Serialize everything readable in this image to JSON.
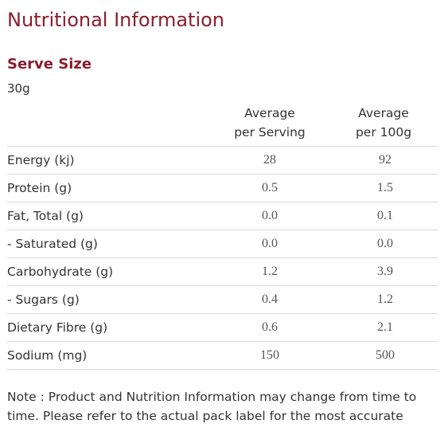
{
  "title": "Nutritional Information",
  "serve": {
    "heading": "Serve Size",
    "value": "30g"
  },
  "table": {
    "headers": {
      "serving_line1": "Average",
      "serving_line2": "per Serving",
      "per100_line1": "Average",
      "per100_line2": "per 100g"
    },
    "rows": [
      {
        "name": "Energy (kj)",
        "serving": "28",
        "per100": "92"
      },
      {
        "name": "Protein (g)",
        "serving": "0.5",
        "per100": "1.5"
      },
      {
        "name": "Fat, Total (g)",
        "serving": "0.0",
        "per100": "0.1"
      },
      {
        "name": "- Saturated (g)",
        "serving": "0.0",
        "per100": "0.0"
      },
      {
        "name": "Carbohydrate (g)",
        "serving": "1.2",
        "per100": "3.9"
      },
      {
        "name": "- Sugars (g)",
        "serving": "0.4",
        "per100": "1.2"
      },
      {
        "name": "Dietary Fibre (g)",
        "serving": "0.6",
        "per100": "2.1"
      },
      {
        "name": "Sodium (mg)",
        "serving": "150",
        "per100": "500"
      }
    ]
  },
  "note": "Note : Product and Nutrition Information may change from time to time. Please refer to the actual pack label for the most accurate",
  "colors": {
    "accent": "#8b1e2e",
    "text": "#333333",
    "divider": "#d9d9d9"
  }
}
